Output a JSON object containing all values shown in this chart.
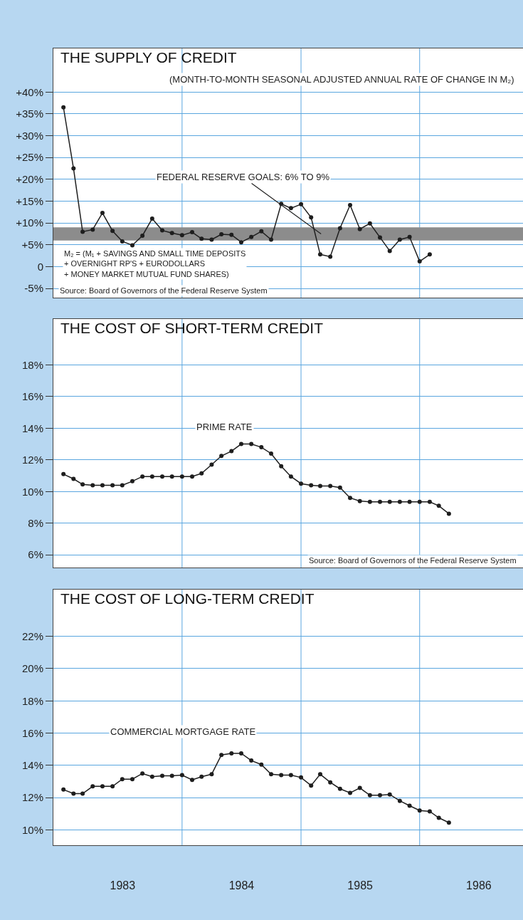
{
  "chart_data": [
    {
      "type": "line",
      "title": "THE SUPPLY OF CREDIT",
      "subtitle": "(MONTH-TO-MONTH SEASONAL ADJUSTED ANNUAL RATE OF CHANGE IN M₂)",
      "x": [
        "1983-01",
        "1983-02",
        "1983-03",
        "1983-04",
        "1983-05",
        "1983-06",
        "1983-07",
        "1983-08",
        "1983-09",
        "1983-10",
        "1983-11",
        "1983-12",
        "1984-01",
        "1984-02",
        "1984-03",
        "1984-04",
        "1984-05",
        "1984-06",
        "1984-07",
        "1984-08",
        "1984-09",
        "1984-10",
        "1984-11",
        "1984-12",
        "1985-01",
        "1985-02",
        "1985-03",
        "1985-04",
        "1985-05",
        "1985-06",
        "1985-07",
        "1985-08",
        "1985-09",
        "1985-10",
        "1985-11",
        "1985-12",
        "1986-01",
        "1986-02"
      ],
      "series": [
        {
          "color": "#1e1e1e",
          "values": [
            36.5,
            22.5,
            8.0,
            8.5,
            12.3,
            8.2,
            5.8,
            4.9,
            7.1,
            11.0,
            8.3,
            7.7,
            7.2,
            7.9,
            6.4,
            6.2,
            7.4,
            7.3,
            5.6,
            6.8,
            8.1,
            6.2,
            14.4,
            13.4,
            14.3,
            11.3,
            2.8,
            2.3,
            8.8,
            14.1,
            8.6,
            9.9,
            6.7,
            3.6,
            6.2,
            6.8,
            1.2,
            2.8
          ]
        }
      ],
      "xlim": [
        "1982-12-01",
        "1986-11-15"
      ],
      "ylim": [
        -7.1,
        50
      ],
      "xticks": [
        {
          "value": "1984-01-01",
          "label": null
        },
        {
          "value": "1985-01-01",
          "label": null
        },
        {
          "value": "1986-01-01",
          "label": null
        }
      ],
      "yticks": [
        {
          "value": 40,
          "label": "+40%"
        },
        {
          "value": 35,
          "label": "+35%"
        },
        {
          "value": 30,
          "label": "+30%"
        },
        {
          "value": 25,
          "label": "+25%"
        },
        {
          "value": 20,
          "label": "+20%"
        },
        {
          "value": 15,
          "label": "+15%"
        },
        {
          "value": 10,
          "label": "+10%"
        },
        {
          "value": 5,
          "label": "+5%"
        },
        0,
        {
          "value": -5,
          "label": "-5%"
        }
      ],
      "bands": [
        {
          "axis": "y",
          "from": 6,
          "to": 9,
          "label": "FEDERAL RESERVE GOALS: 6% TO 9%",
          "color": "#8c8c8c"
        }
      ],
      "annotations": [
        "M₂ = (M₁ + SAVINGS AND SMALL TIME DEPOSITS\n+ OVERNIGHT RP'S + EURODOLLARS\n+ MONEY MARKET MUTUAL FUND SHARES)",
        "Source: Board of Governors of the Federal Reserve System"
      ],
      "grid": true,
      "marker": "circle",
      "line_style": "solid",
      "tick_labels": "y"
    },
    {
      "type": "line",
      "title": "THE COST OF SHORT-TERM CREDIT",
      "x": [
        "1983-01",
        "1983-02",
        "1983-03",
        "1983-04",
        "1983-05",
        "1983-06",
        "1983-07",
        "1983-08",
        "1983-09",
        "1983-10",
        "1983-11",
        "1983-12",
        "1984-01",
        "1984-02",
        "1984-03",
        "1984-04",
        "1984-05",
        "1984-06",
        "1984-07",
        "1984-08",
        "1984-09",
        "1984-10",
        "1984-11",
        "1984-12",
        "1985-01",
        "1985-02",
        "1985-03",
        "1985-04",
        "1985-05",
        "1985-06",
        "1985-07",
        "1985-08",
        "1985-09",
        "1985-10",
        "1985-11",
        "1985-12",
        "1986-01",
        "1986-02",
        "1986-03",
        "1986-04"
      ],
      "series": [
        {
          "name": "PRIME RATE",
          "color": "#1e1e1e",
          "values": [
            11.1,
            10.8,
            10.45,
            10.4,
            10.4,
            10.4,
            10.4,
            10.65,
            10.95,
            10.95,
            10.95,
            10.95,
            10.95,
            10.95,
            11.15,
            11.7,
            12.25,
            12.55,
            13.0,
            13.0,
            12.8,
            12.4,
            11.6,
            10.95,
            10.5,
            10.4,
            10.35,
            10.35,
            10.25,
            9.6,
            9.4,
            9.35,
            9.35,
            9.35,
            9.35,
            9.35,
            9.35,
            9.35,
            9.1,
            8.6
          ]
        }
      ],
      "xlim": [
        "1982-12-01",
        "1986-11-15"
      ],
      "ylim": [
        5.2,
        20.9
      ],
      "xticks": [
        {
          "value": "1984-01-01",
          "label": null
        },
        {
          "value": "1985-01-01",
          "label": null
        },
        {
          "value": "1986-01-01",
          "label": null
        }
      ],
      "yticks": [
        {
          "value": 18,
          "label": "18%"
        },
        {
          "value": 16,
          "label": "16%"
        },
        {
          "value": 14,
          "label": "14%"
        },
        {
          "value": 12,
          "label": "12%"
        },
        {
          "value": 10,
          "label": "10%"
        },
        {
          "value": 8,
          "label": "8%"
        },
        {
          "value": 6,
          "label": "6%"
        }
      ],
      "annotations": [
        "Source: Board of Governors of the Federal Reserve System"
      ],
      "grid": true,
      "marker": "circle",
      "line_style": "solid",
      "tick_labels": "y"
    },
    {
      "type": "line",
      "title": "THE COST OF LONG-TERM CREDIT",
      "x": [
        "1983-01",
        "1983-02",
        "1983-03",
        "1983-04",
        "1983-05",
        "1983-06",
        "1983-07",
        "1983-08",
        "1983-09",
        "1983-10",
        "1983-11",
        "1983-12",
        "1984-01",
        "1984-02",
        "1984-03",
        "1984-04",
        "1984-05",
        "1984-06",
        "1984-07",
        "1984-08",
        "1984-09",
        "1984-10",
        "1984-11",
        "1984-12",
        "1985-01",
        "1985-02",
        "1985-03",
        "1985-04",
        "1985-05",
        "1985-06",
        "1985-07",
        "1985-08",
        "1985-09",
        "1985-10",
        "1985-11",
        "1985-12",
        "1986-01",
        "1986-02",
        "1986-03",
        "1986-04"
      ],
      "series": [
        {
          "name": "COMMERCIAL MORTGAGE RATE",
          "color": "#1e1e1e",
          "values": [
            12.5,
            12.25,
            12.25,
            12.7,
            12.7,
            12.7,
            13.15,
            13.15,
            13.5,
            13.3,
            13.35,
            13.35,
            13.4,
            13.1,
            13.3,
            13.45,
            14.65,
            14.75,
            14.75,
            14.3,
            14.05,
            13.45,
            13.4,
            13.4,
            13.25,
            12.75,
            13.45,
            12.95,
            12.55,
            12.3,
            12.6,
            12.15,
            12.15,
            12.2,
            11.8,
            11.5,
            11.2,
            11.15,
            10.75,
            10.45
          ]
        }
      ],
      "xlim": [
        "1982-12-01",
        "1986-11-15"
      ],
      "ylim": [
        9.05,
        24.9
      ],
      "xticks": [
        {
          "value": "1984-01-01",
          "label": null
        },
        {
          "value": "1985-01-01",
          "label": null
        },
        {
          "value": "1986-01-01",
          "label": null
        },
        {
          "value": "1983-07-02",
          "label": "1983"
        },
        {
          "value": "1984-07-02",
          "label": "1984"
        },
        {
          "value": "1985-07-02",
          "label": "1985"
        },
        {
          "value": "1986-07-02",
          "label": "1986"
        }
      ],
      "yticks": [
        {
          "value": 22,
          "label": "22%"
        },
        {
          "value": 20,
          "label": "20%"
        },
        {
          "value": 18,
          "label": "18%"
        },
        {
          "value": 16,
          "label": "16%"
        },
        {
          "value": 14,
          "label": "14%"
        },
        {
          "value": 12,
          "label": "12%"
        },
        {
          "value": 10,
          "label": "10%"
        }
      ],
      "grid": true,
      "marker": "circle",
      "line_style": "solid"
    }
  ]
}
